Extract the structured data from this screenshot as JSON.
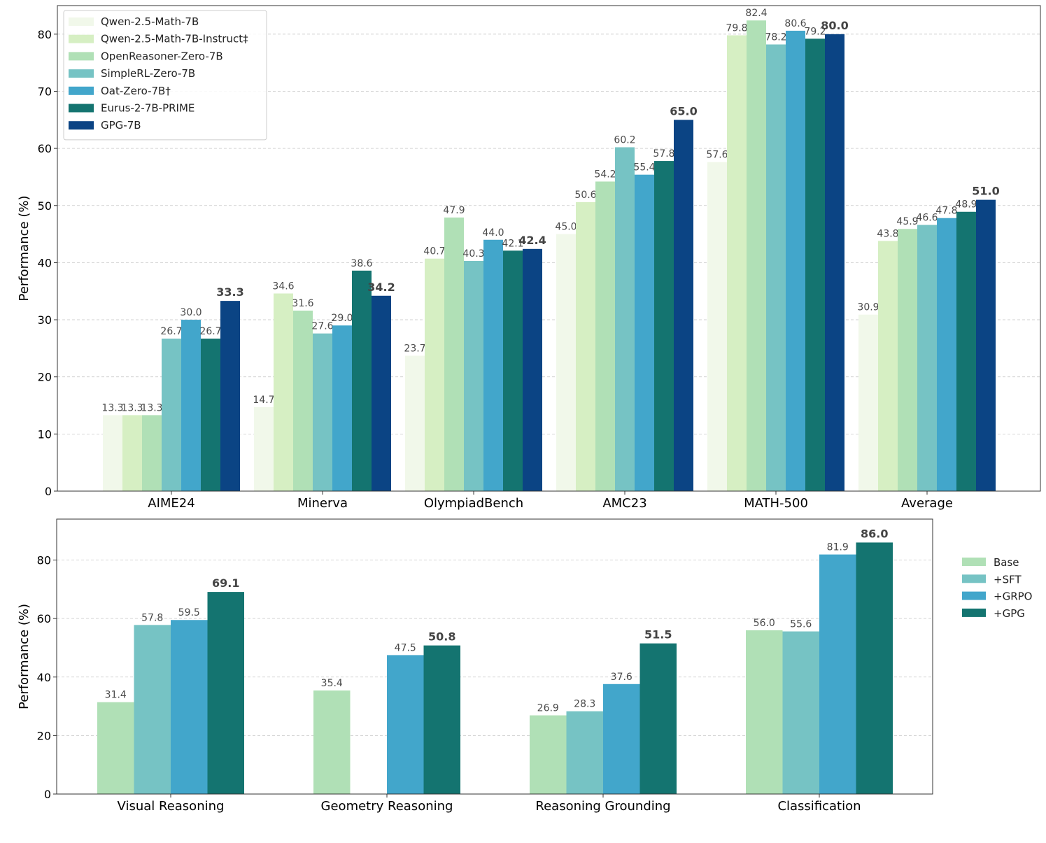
{
  "chart_data": [
    {
      "type": "bar",
      "ylabel": "Performance (%)",
      "ylim": [
        0,
        85
      ],
      "yticks": [
        0,
        10,
        20,
        30,
        40,
        50,
        60,
        70,
        80
      ],
      "grid": true,
      "legend_position": "top-left",
      "categories": [
        "AIME24",
        "Minerva",
        "OlympiadBench",
        "AMC23",
        "MATH-500",
        "Average"
      ],
      "highlight_series": "GPG-7B",
      "series": [
        {
          "name": "Qwen-2.5-Math-7B",
          "color": "#f1f8ea",
          "values": [
            13.3,
            14.7,
            23.7,
            45.0,
            57.6,
            30.9
          ]
        },
        {
          "name": "Qwen-2.5-Math-7B-Instruct‡",
          "color": "#d6efc3",
          "values": [
            13.3,
            34.6,
            40.7,
            50.6,
            79.8,
            43.8
          ]
        },
        {
          "name": "OpenReasoner-Zero-7B",
          "color": "#b0e0b6",
          "values": [
            13.3,
            31.6,
            47.9,
            54.2,
            82.4,
            45.9
          ]
        },
        {
          "name": "SimpleRL-Zero-7B",
          "color": "#76c3c4",
          "values": [
            26.7,
            27.6,
            40.3,
            60.2,
            78.2,
            46.6
          ]
        },
        {
          "name": "Oat-Zero-7B†",
          "color": "#42a6cb",
          "values": [
            30.0,
            29.0,
            44.0,
            55.4,
            80.6,
            47.8
          ]
        },
        {
          "name": "Eurus-2-7B-PRIME",
          "color": "#147470",
          "values": [
            26.7,
            38.6,
            42.1,
            57.8,
            79.2,
            48.9
          ]
        },
        {
          "name": "GPG-7B",
          "color": "#0b4484",
          "values": [
            33.3,
            34.2,
            42.4,
            65.0,
            80.0,
            51.0
          ]
        }
      ]
    },
    {
      "type": "bar",
      "ylabel": "Performance (%)",
      "ylim": [
        0,
        94
      ],
      "yticks": [
        0,
        20,
        40,
        60,
        80
      ],
      "grid": true,
      "legend_position": "outside-right",
      "categories": [
        "Visual Reasoning",
        "Geometry Reasoning",
        "Reasoning Grounding",
        "Classification"
      ],
      "highlight_series": "+GPG",
      "series": [
        {
          "name": "Base",
          "color": "#b0e0b6",
          "values": [
            31.4,
            35.4,
            26.9,
            56.0
          ]
        },
        {
          "name": "+SFT",
          "color": "#76c3c4",
          "values": [
            57.8,
            null,
            28.3,
            55.6
          ]
        },
        {
          "name": "+GRPO",
          "color": "#42a6cb",
          "values": [
            59.5,
            47.5,
            37.6,
            81.9
          ]
        },
        {
          "name": "+GPG",
          "color": "#147470",
          "values": [
            69.1,
            50.8,
            51.5,
            86.0
          ]
        }
      ]
    }
  ]
}
